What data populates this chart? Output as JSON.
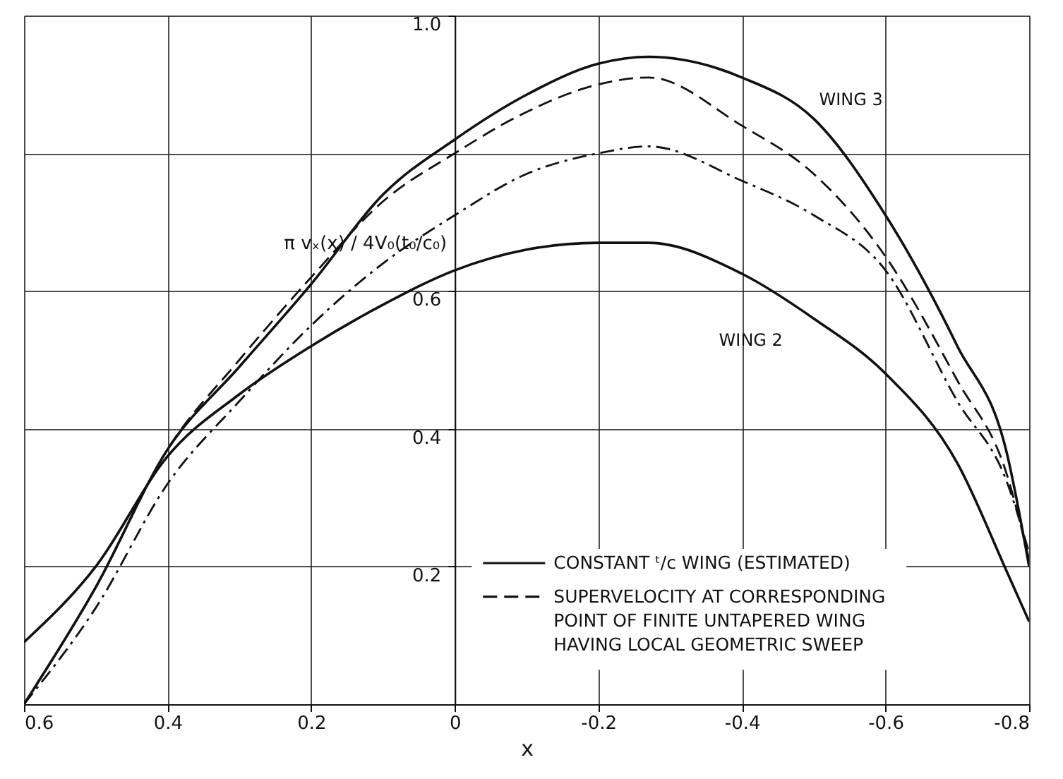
{
  "chart_data": {
    "type": "line",
    "x": [
      0.6,
      0.5,
      0.4,
      0.3,
      0.2,
      0.1,
      0,
      -0.1,
      -0.2,
      -0.27,
      -0.4,
      -0.5,
      -0.6,
      -0.7,
      -0.77,
      -0.8
    ],
    "series": [
      {
        "name": "CONSTANT ᵗ/c WING (ESTIMATED)",
        "color": "#111111",
        "line_style": "solid",
        "values": [
          0.0,
          0.17,
          0.37,
          0.49,
          0.61,
          0.74,
          0.82,
          0.885,
          0.93,
          0.94,
          0.91,
          0.85,
          0.71,
          0.52,
          0.36,
          0.2
        ]
      },
      {
        "color": "#111111",
        "line_style": "solid",
        "values": [
          0.09,
          0.2,
          0.36,
          0.45,
          0.52,
          0.58,
          0.63,
          0.66,
          0.67,
          0.67,
          0.625,
          0.56,
          0.48,
          0.35,
          0.19,
          0.12
        ]
      },
      {
        "name": "SUPERVELOCITY AT CORRESPONDING POINT OF FINITE UNTAPERED WING HAVING LOCAL GEOMETRIC SWEEP",
        "color": "#111111",
        "line_style": "dashed",
        "values": [
          0.0,
          0.17,
          0.37,
          0.5,
          0.62,
          0.73,
          0.8,
          0.86,
          0.9,
          0.91,
          0.84,
          0.77,
          0.65,
          0.47,
          0.33,
          0.21
        ]
      },
      {
        "color": "#111111",
        "line_style": "dashdot",
        "values": [
          0.0,
          0.14,
          0.32,
          0.44,
          0.55,
          0.64,
          0.71,
          0.77,
          0.8,
          0.81,
          0.76,
          0.71,
          0.63,
          0.44,
          0.32,
          0.22
        ]
      }
    ],
    "xlabel": "x",
    "ylabel": "π vₓ(x) / 4V₀(t₀/c₀)",
    "xlim": [
      0.6,
      -0.8
    ],
    "ylim": [
      0,
      1.0
    ],
    "xticks": [
      0.6,
      0.4,
      0.2,
      0,
      -0.2,
      -0.4,
      -0.6,
      -0.8
    ],
    "yticks": [
      0.2,
      0.4,
      0.6,
      {
        "value": 0.8,
        "label": null
      },
      {
        "value": 1.0,
        "label": "1.0"
      }
    ],
    "grid": true,
    "legend": "bottom right",
    "annotations": [
      {
        "text": "WING 3",
        "x": -0.48,
        "y": 0.87
      },
      {
        "text": "WING 2",
        "x": -0.5,
        "y": 0.57
      }
    ]
  }
}
